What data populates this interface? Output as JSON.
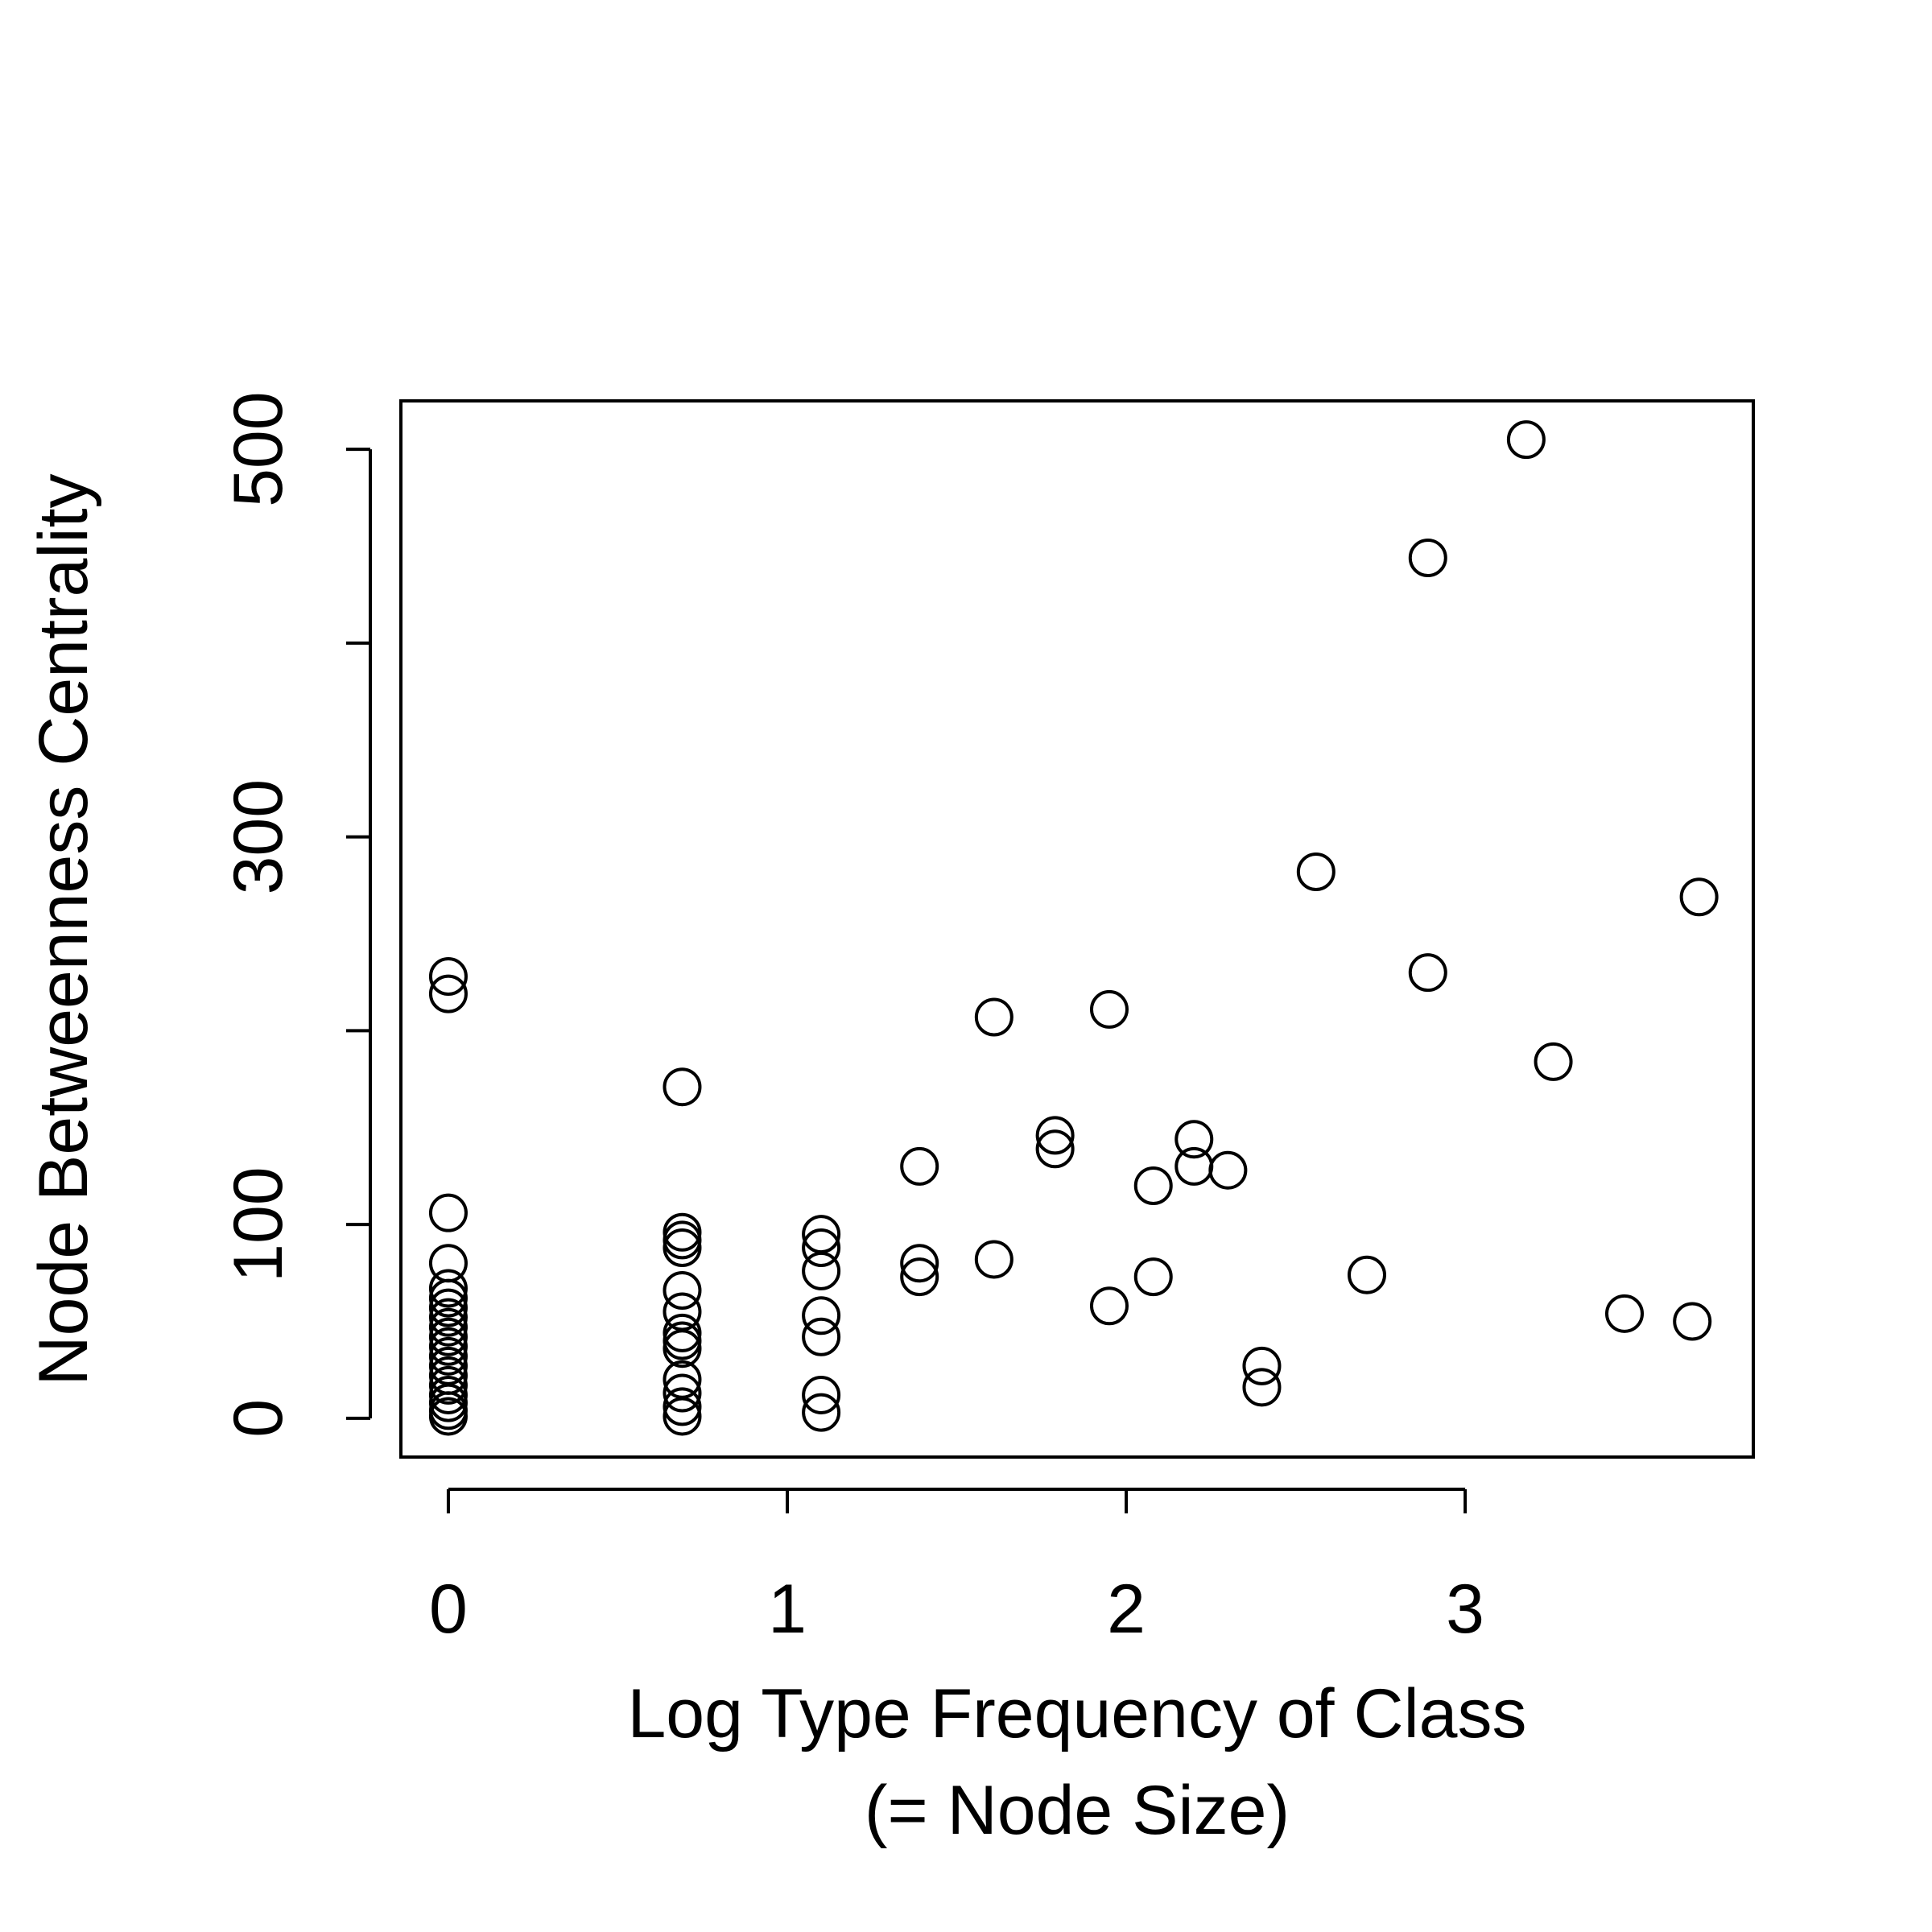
{
  "chart_data": {
    "type": "scatter",
    "xlabel": [
      "Log Type Frequency of Class",
      "(= Node Size)"
    ],
    "ylabel": "Node Betweenness Centrality",
    "xlim": [
      -0.14,
      3.85
    ],
    "ylim": [
      -20,
      525
    ],
    "xticks": [
      0,
      1,
      2,
      3
    ],
    "yticks": [
      0,
      100,
      200,
      300,
      400,
      500
    ],
    "ytick_labels": [
      "0",
      "100",
      "",
      "300",
      "",
      "500"
    ],
    "xtick_labels": [
      "0",
      "1",
      "2",
      "3"
    ],
    "grid": false,
    "legend": "none",
    "marker": "open-circle",
    "points": [
      {
        "x": 0,
        "y": 228
      },
      {
        "x": 0,
        "y": 219
      },
      {
        "x": 0,
        "y": 106
      },
      {
        "x": 0,
        "y": 80
      },
      {
        "x": 0,
        "y": 67
      },
      {
        "x": 0,
        "y": 62
      },
      {
        "x": 0,
        "y": 57
      },
      {
        "x": 0,
        "y": 52
      },
      {
        "x": 0,
        "y": 47
      },
      {
        "x": 0,
        "y": 42
      },
      {
        "x": 0,
        "y": 37
      },
      {
        "x": 0,
        "y": 32
      },
      {
        "x": 0,
        "y": 27
      },
      {
        "x": 0,
        "y": 22
      },
      {
        "x": 0,
        "y": 17
      },
      {
        "x": 0,
        "y": 12
      },
      {
        "x": 0,
        "y": 8
      },
      {
        "x": 0,
        "y": 4
      },
      {
        "x": 0,
        "y": 1
      },
      {
        "x": 0.69,
        "y": 171
      },
      {
        "x": 0.69,
        "y": 96
      },
      {
        "x": 0.69,
        "y": 92
      },
      {
        "x": 0.69,
        "y": 88
      },
      {
        "x": 0.69,
        "y": 66
      },
      {
        "x": 0.69,
        "y": 55
      },
      {
        "x": 0.69,
        "y": 44
      },
      {
        "x": 0.69,
        "y": 40
      },
      {
        "x": 0.69,
        "y": 36
      },
      {
        "x": 0.69,
        "y": 20
      },
      {
        "x": 0.69,
        "y": 13
      },
      {
        "x": 0.69,
        "y": 6
      },
      {
        "x": 0.69,
        "y": 1
      },
      {
        "x": 1.1,
        "y": 95
      },
      {
        "x": 1.1,
        "y": 88
      },
      {
        "x": 1.1,
        "y": 76
      },
      {
        "x": 1.1,
        "y": 53
      },
      {
        "x": 1.1,
        "y": 42
      },
      {
        "x": 1.1,
        "y": 12
      },
      {
        "x": 1.1,
        "y": 3
      },
      {
        "x": 1.39,
        "y": 130
      },
      {
        "x": 1.39,
        "y": 80
      },
      {
        "x": 1.39,
        "y": 73
      },
      {
        "x": 1.61,
        "y": 207
      },
      {
        "x": 1.61,
        "y": 82
      },
      {
        "x": 1.79,
        "y": 146
      },
      {
        "x": 1.79,
        "y": 139
      },
      {
        "x": 1.95,
        "y": 211
      },
      {
        "x": 1.95,
        "y": 58
      },
      {
        "x": 2.08,
        "y": 120
      },
      {
        "x": 2.08,
        "y": 73
      },
      {
        "x": 2.2,
        "y": 144
      },
      {
        "x": 2.2,
        "y": 130
      },
      {
        "x": 2.3,
        "y": 128
      },
      {
        "x": 2.4,
        "y": 27
      },
      {
        "x": 2.4,
        "y": 16
      },
      {
        "x": 2.56,
        "y": 282
      },
      {
        "x": 2.71,
        "y": 74
      },
      {
        "x": 2.89,
        "y": 444
      },
      {
        "x": 2.89,
        "y": 230
      },
      {
        "x": 3.18,
        "y": 505
      },
      {
        "x": 3.26,
        "y": 184
      },
      {
        "x": 3.47,
        "y": 54
      },
      {
        "x": 3.67,
        "y": 50
      },
      {
        "x": 3.69,
        "y": 269
      }
    ]
  }
}
